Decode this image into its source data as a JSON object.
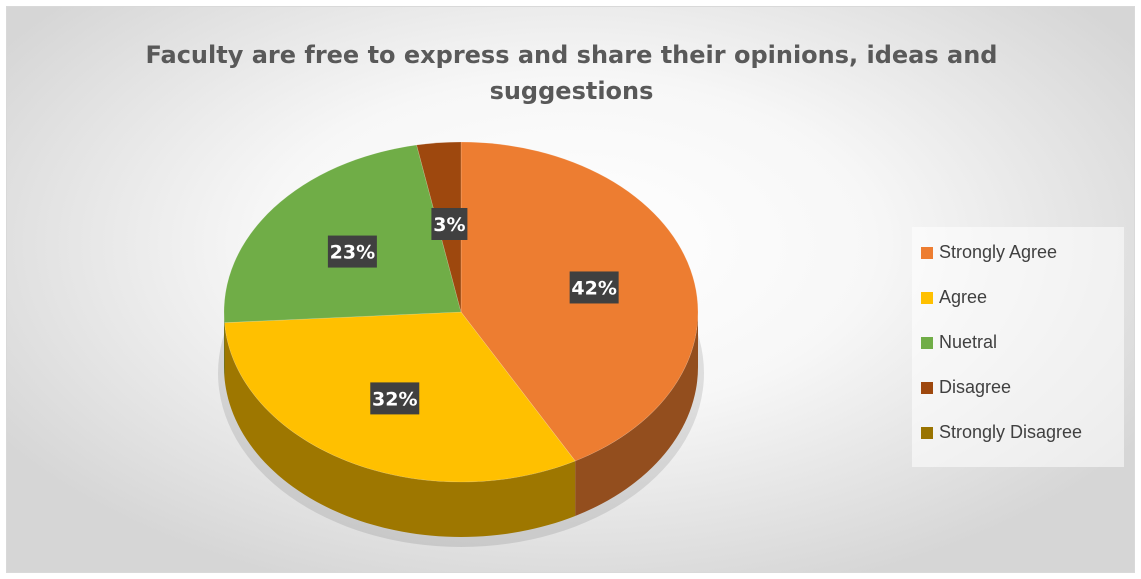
{
  "chart_data": {
    "type": "pie",
    "title": "Faculty are free to express and share their opinions, ideas and suggestions",
    "title_lines": [
      "Faculty are free to express and share their opinions, ideas and",
      "suggestions"
    ],
    "categories": [
      "Strongly Agree",
      "Agree",
      "Nuetral",
      "Disagree",
      "Strongly Disagree"
    ],
    "values": [
      42,
      32,
      23,
      3,
      0
    ],
    "data_labels": [
      "42%",
      "32%",
      "23%",
      "3%",
      ""
    ],
    "colors": [
      "#ed7d31",
      "#ffc000",
      "#70ad47",
      "#9e480e",
      "#997300"
    ],
    "style": "3d",
    "legend_position": "right"
  }
}
